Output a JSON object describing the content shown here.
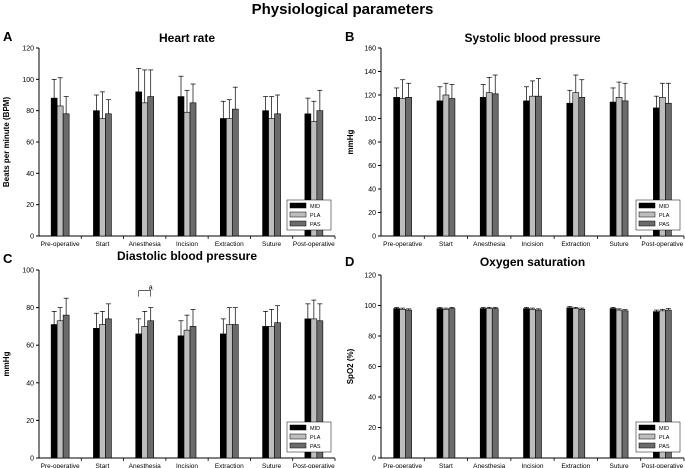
{
  "figure_title": "Physiological parameters",
  "colors": {
    "MID": "#000000",
    "PLA": "#bdbdbd",
    "PAS": "#6b6b6b"
  },
  "chart_data": [
    {
      "panel_letter": "A",
      "type": "bar",
      "title": "Heart rate",
      "xlabel": "",
      "ylabel": "Beats per minute (BPM)",
      "ylim": [
        0,
        120
      ],
      "yticks": [
        0,
        20,
        40,
        60,
        80,
        100,
        120
      ],
      "categories": [
        "Pre-operative",
        "Start",
        "Anesthesia",
        "Incision",
        "Extraction",
        "Suture",
        "Post-operative"
      ],
      "legend": [
        "MID",
        "PLA",
        "PAS"
      ],
      "series": [
        {
          "name": "MID",
          "values": [
            88,
            80,
            92,
            89,
            75,
            80,
            78
          ],
          "errors": [
            12,
            10,
            15,
            13,
            11,
            9,
            10
          ]
        },
        {
          "name": "PLA",
          "values": [
            83,
            75,
            85,
            79,
            75,
            75,
            73
          ],
          "errors": [
            18,
            17,
            21,
            14,
            12,
            14,
            13
          ]
        },
        {
          "name": "PAS",
          "values": [
            78,
            78,
            89,
            85,
            81,
            78,
            80
          ],
          "errors": [
            11,
            9,
            17,
            12,
            14,
            12,
            13
          ]
        }
      ],
      "annotations": []
    },
    {
      "panel_letter": "B",
      "type": "bar",
      "title": "Systolic blood pressure",
      "xlabel": "",
      "ylabel": "mmHg",
      "ylim": [
        0,
        160
      ],
      "yticks": [
        0,
        20,
        40,
        60,
        80,
        100,
        120,
        140,
        160
      ],
      "categories": [
        "Pre-operative",
        "Start",
        "Anesthesia",
        "Incision",
        "Extraction",
        "Suture",
        "Post-operative"
      ],
      "legend": [
        "MID",
        "PLA",
        "PAS"
      ],
      "series": [
        {
          "name": "MID",
          "values": [
            118,
            115,
            118,
            115,
            113,
            114,
            109
          ],
          "errors": [
            8,
            12,
            11,
            12,
            11,
            12,
            10
          ]
        },
        {
          "name": "PLA",
          "values": [
            117,
            120,
            122,
            119,
            122,
            118,
            118
          ],
          "errors": [
            16,
            10,
            13,
            13,
            15,
            13,
            12
          ]
        },
        {
          "name": "PAS",
          "values": [
            118,
            117,
            121,
            119,
            118,
            115,
            113
          ],
          "errors": [
            12,
            12,
            16,
            15,
            15,
            15,
            17
          ]
        }
      ],
      "annotations": []
    },
    {
      "panel_letter": "C",
      "type": "bar",
      "title": "Diastolic blood pressure",
      "xlabel": "",
      "ylabel": "mmHg",
      "ylim": [
        0,
        100
      ],
      "yticks": [
        0,
        20,
        40,
        60,
        80,
        100
      ],
      "categories": [
        "Pre-operative",
        "Start",
        "Anesthesia",
        "Incision",
        "Extraction",
        "Suture",
        "Post-operative"
      ],
      "legend": [
        "MID",
        "PLA",
        "PAS"
      ],
      "series": [
        {
          "name": "MID",
          "values": [
            71,
            69,
            66,
            65,
            66,
            70,
            74
          ],
          "errors": [
            7,
            8,
            8,
            8,
            8,
            8,
            8
          ]
        },
        {
          "name": "PLA",
          "values": [
            73,
            71,
            70,
            68,
            71,
            70,
            74
          ],
          "errors": [
            7,
            7,
            8,
            8,
            9,
            9,
            10
          ]
        },
        {
          "name": "PAS",
          "values": [
            76,
            74,
            73,
            70,
            71,
            72,
            73
          ],
          "errors": [
            9,
            8,
            7,
            9,
            9,
            9,
            9
          ]
        }
      ],
      "annotations": [
        {
          "text": "a",
          "category": "Anesthesia",
          "between": [
            "MID",
            "PAS"
          ],
          "y": 89
        }
      ]
    },
    {
      "panel_letter": "D",
      "type": "bar",
      "title": "Oxygen saturation",
      "xlabel": "",
      "ylabel": "SpO2 (%)",
      "ylim": [
        0,
        120
      ],
      "yticks": [
        0,
        20,
        40,
        60,
        80,
        100,
        120
      ],
      "categories": [
        "Pre-operative",
        "Start",
        "Anesthesia",
        "Incision",
        "Extraction",
        "Suture",
        "Post-operative"
      ],
      "legend": [
        "MID",
        "PLA",
        "PAS"
      ],
      "series": [
        {
          "name": "MID",
          "values": [
            98,
            98,
            98,
            98,
            98.5,
            98,
            96
          ],
          "errors": [
            0.8,
            0.8,
            0.8,
            0.8,
            0.8,
            0.8,
            1
          ]
        },
        {
          "name": "PLA",
          "values": [
            97.5,
            97.5,
            98,
            97.5,
            98,
            97,
            96.5
          ],
          "errors": [
            0.8,
            0.8,
            0.8,
            0.8,
            0.8,
            0.8,
            1
          ]
        },
        {
          "name": "PAS",
          "values": [
            97,
            98,
            98,
            97,
            97.5,
            96.5,
            97
          ],
          "errors": [
            0.8,
            0.8,
            0.8,
            0.8,
            0.8,
            0.8,
            1
          ]
        }
      ],
      "annotations": []
    }
  ]
}
